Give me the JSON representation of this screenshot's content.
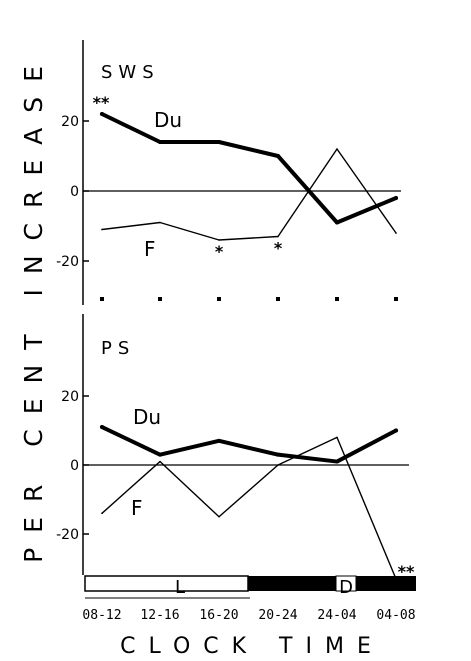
{
  "chart_data": [
    {
      "type": "line",
      "title": "SWS",
      "categories": [
        "08-12",
        "12-16",
        "16-20",
        "20-24",
        "24-04",
        "04-08"
      ],
      "ylabel": "PER CENT INCREASE",
      "xlabel": "CLOCK TIME",
      "ylim": [
        -32,
        42
      ],
      "yticks": [
        20,
        0,
        -20
      ],
      "ytick_labels": [
        "20",
        "0",
        "-20"
      ],
      "grid": false,
      "series": [
        {
          "name": "Du",
          "values": [
            22,
            14,
            14,
            10,
            -9,
            -2
          ],
          "style": "thick"
        },
        {
          "name": "F",
          "values": [
            -11,
            -9,
            -14,
            -13,
            12,
            -12
          ],
          "style": "thin"
        }
      ],
      "annotations": [
        {
          "text": "**",
          "series": "Du",
          "category": "08-12"
        },
        {
          "text": "*",
          "series": "F",
          "category": "16-20"
        },
        {
          "text": "*",
          "series": "F",
          "category": "20-24"
        }
      ]
    },
    {
      "type": "line",
      "title": "PS",
      "categories": [
        "08-12",
        "12-16",
        "16-20",
        "20-24",
        "24-04",
        "04-08"
      ],
      "ylabel": "PER CENT INCREASE",
      "xlabel": "CLOCK TIME",
      "ylim": [
        -33,
        42
      ],
      "yticks": [
        20,
        0,
        -20
      ],
      "ytick_labels": [
        "20",
        "0",
        "-20"
      ],
      "grid": false,
      "series": [
        {
          "name": "Du",
          "values": [
            11,
            3,
            7,
            3,
            1,
            10
          ],
          "style": "thick"
        },
        {
          "name": "F",
          "values": [
            -14,
            1,
            -15,
            0,
            8,
            -33
          ],
          "style": "thin"
        }
      ],
      "annotations": [
        {
          "text": "**",
          "series": "F",
          "category": "04-08"
        }
      ]
    }
  ],
  "y_axis_title": "PER CENT INCREASE",
  "x_axis_title": "CLOCK TIME",
  "light_dark_bar": {
    "light_label": "L",
    "dark_label": "D",
    "segments": [
      {
        "phase": "light",
        "from": "08-12",
        "to": "16-20"
      },
      {
        "phase": "dark",
        "from": "20-24",
        "to": "24-04"
      },
      {
        "phase": "dark",
        "from": "24-04",
        "to": "04-08"
      }
    ]
  },
  "colors": {
    "ink": "#000000",
    "paper": "#ffffff"
  }
}
